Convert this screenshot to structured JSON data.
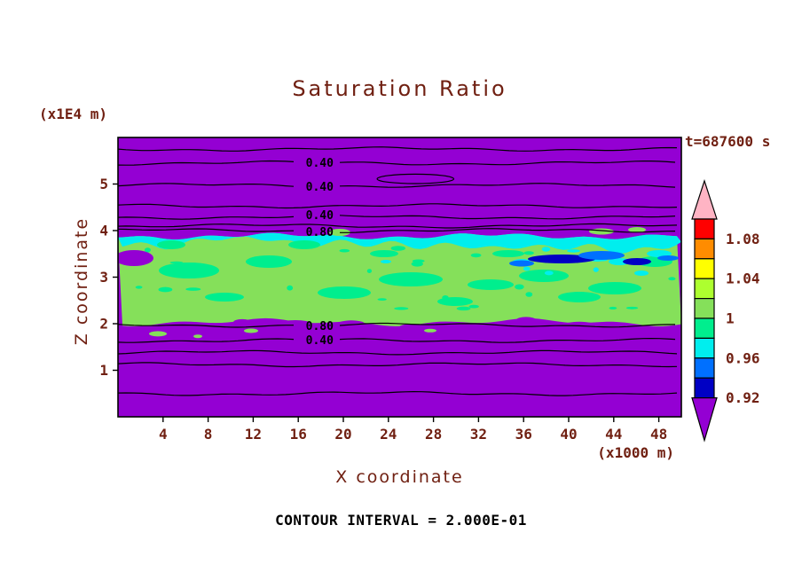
{
  "title": "Saturation Ratio",
  "timestamp_label": "t=687600 s",
  "footer_note": "CONTOUR INTERVAL = 2.000E-01",
  "axis": {
    "x_title": "X coordinate",
    "z_title": "Z coordinate",
    "x_unit": "(x1000 m)",
    "z_unit": "(x1E4 m)"
  },
  "palette": {
    "text": "#702012",
    "contour_text": "#000000",
    "background_field": "#9400D3",
    "band_green": "#85E05A",
    "spring_green": "#00EE8E",
    "cyan": "#00EEEE",
    "blue": "#0070FF",
    "navy": "#0000C4",
    "pink": "#FFB4C4",
    "red": "#FF0000",
    "orange": "#FF8C00",
    "yellow": "#FFFF00",
    "green_yellow": "#ADFF2F"
  },
  "chart_data": {
    "type": "heatmap",
    "title": "Saturation Ratio",
    "xlabel": "X coordinate (x1000 m)",
    "ylabel": "Z coordinate (x1E4 m)",
    "time": "t=687600 s",
    "contour_interval": "2.000E-01",
    "xlim": [
      0,
      50
    ],
    "zlim": [
      0,
      6
    ],
    "x_ticks": [
      4,
      8,
      12,
      16,
      20,
      24,
      28,
      32,
      36,
      40,
      44,
      48
    ],
    "z_ticks": [
      1,
      2,
      3,
      4,
      5
    ],
    "grid": false,
    "colorbar": {
      "position": "right",
      "tick_labels": [
        "1.08",
        "1.04",
        "1",
        "0.96",
        "0.92"
      ],
      "tick_values": [
        1.08,
        1.04,
        1,
        0.96,
        0.92
      ],
      "value_top": 1.1,
      "value_step": 0.02,
      "segment_colors_top_to_bottom": [
        "red",
        "orange",
        "yellow",
        "green_yellow",
        "band_green",
        "spring_green",
        "cyan",
        "blue",
        "navy"
      ],
      "over_color": "pink",
      "under_color": "background_field"
    },
    "contour_label_x": 17.9,
    "contour_lines": [
      {
        "z": 5.75,
        "label": null
      },
      {
        "z": 5.45,
        "label": "0.40"
      },
      {
        "z": 4.97,
        "label": "0.40"
      },
      {
        "z": 4.53,
        "label": null
      },
      {
        "z": 4.29,
        "label": "0.40"
      },
      {
        "z": 4.1,
        "label": null
      },
      {
        "z": 4.0,
        "label": "0.80"
      },
      {
        "z": 1.97,
        "label": "0.80"
      },
      {
        "z": 1.64,
        "label": "0.40"
      },
      {
        "z": 1.38,
        "label": null
      },
      {
        "z": 1.12,
        "label": null
      },
      {
        "z": 0.5,
        "label": null
      }
    ],
    "closed_contours": [
      {
        "x": 26.4,
        "z": 5.11,
        "rx": 3.4,
        "rz": 0.1
      }
    ],
    "saturated_band": {
      "z_bottom": 2.03,
      "z_top": 3.88
    },
    "field_summary": "Purple field (S<0.92) fills the domain except a saturated green band (S~1) between z~2 and z~3.9; a cyan strip (S~0.96-0.98) runs along the band top with blue/navy streaks (S~0.92-0.96) near x~35-46, and spring-green patches are scattered through the band. Black 0.40/0.80 contour lines run horizontally above and below the band."
  }
}
